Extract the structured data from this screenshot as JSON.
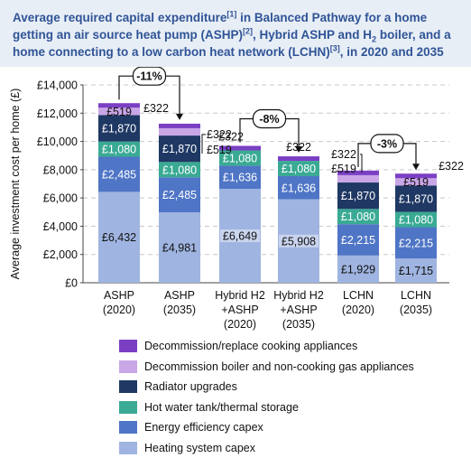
{
  "title": {
    "part1": "Average required capital expenditure",
    "sup1": "[1]",
    "part2": " in Balanced Pathway for a home getting an air source heat pump (ASHP)",
    "sup2": "[2]",
    "part3": ", Hybrid ASHP and H",
    "sub1": "2",
    "part4": " boiler, and a home connecting to a low carbon heat network (LCHN)",
    "sup3": "[3]",
    "part5": ", in 2020 and 2035"
  },
  "colors": {
    "heating": "#9fb4e0",
    "efficiency": "#4f75c6",
    "hotwater": "#3aaa94",
    "radiator": "#1f3864",
    "boiler": "#c9a6e6",
    "cooking": "#7b3fc4",
    "title": "#2f5496"
  },
  "chart_data": {
    "type": "bar",
    "stacked": true,
    "ylabel": "Average investment cost per home (£)",
    "ylim": [
      0,
      14000
    ],
    "yticks": [
      "£0",
      "£2,000",
      "£4,000",
      "£6,000",
      "£8,000",
      "£10,000",
      "£12,000",
      "£14,000"
    ],
    "ytick_values": [
      0,
      2000,
      4000,
      6000,
      8000,
      10000,
      12000,
      14000
    ],
    "grid": true,
    "categories": [
      [
        "ASHP",
        "(2020)"
      ],
      [
        "ASHP",
        "(2035)"
      ],
      [
        "Hybrid H2",
        "+ASHP",
        "(2020)"
      ],
      [
        "Hybrid H2",
        "+ASHP",
        "(2035)"
      ],
      [
        "LCHN",
        "(2020)"
      ],
      [
        "LCHN",
        "(2035)"
      ]
    ],
    "series": [
      {
        "key": "heating",
        "name": "Heating system capex",
        "values": [
          6432,
          4981,
          6649,
          5908,
          1929,
          1715
        ],
        "labels": [
          "£6,432",
          "£4,981",
          "£6,649",
          "£5,908",
          "£1,929",
          "£1,715"
        ]
      },
      {
        "key": "efficiency",
        "name": "Energy efficiency capex",
        "values": [
          2485,
          2485,
          1636,
          1636,
          2215,
          2215
        ],
        "labels": [
          "£2,485",
          "£2,485",
          "£1,636",
          "£1,636",
          "£2,215",
          "£2,215"
        ]
      },
      {
        "key": "hotwater",
        "name": "Hot water tank/thermal storage",
        "values": [
          1080,
          1080,
          1080,
          1080,
          1080,
          1080
        ],
        "labels": [
          "£1,080",
          "£1,080",
          "£1,080",
          "£1,080",
          "£1,080",
          "£1,080"
        ]
      },
      {
        "key": "radiator",
        "name": "Radiator upgrades",
        "values": [
          1870,
          1870,
          0,
          0,
          1870,
          1870
        ],
        "labels": [
          "£1,870",
          "£1,870",
          "",
          "",
          "£1,870",
          "£1,870"
        ]
      },
      {
        "key": "boiler",
        "name": "Decommission boiler and non-cooking gas appliances",
        "values": [
          519,
          519,
          0,
          0,
          519,
          519
        ],
        "labels": [
          "£519",
          "£519",
          "",
          "",
          "£519",
          "£519"
        ]
      },
      {
        "key": "cooking",
        "name": "Decommission/replace cooking appliances",
        "values": [
          322,
          322,
          322,
          322,
          322,
          322
        ],
        "labels": [
          "£322",
          "£322",
          "£322",
          "£322",
          "£322",
          "£322"
        ]
      }
    ],
    "legend_order": [
      "cooking",
      "boiler",
      "radiator",
      "hotwater",
      "efficiency",
      "heating"
    ],
    "annotations": [
      {
        "from": 0,
        "to": 1,
        "text": "-11%"
      },
      {
        "from": 2,
        "to": 3,
        "text": "-8%"
      },
      {
        "from": 4,
        "to": 5,
        "text": "-3%"
      }
    ]
  }
}
